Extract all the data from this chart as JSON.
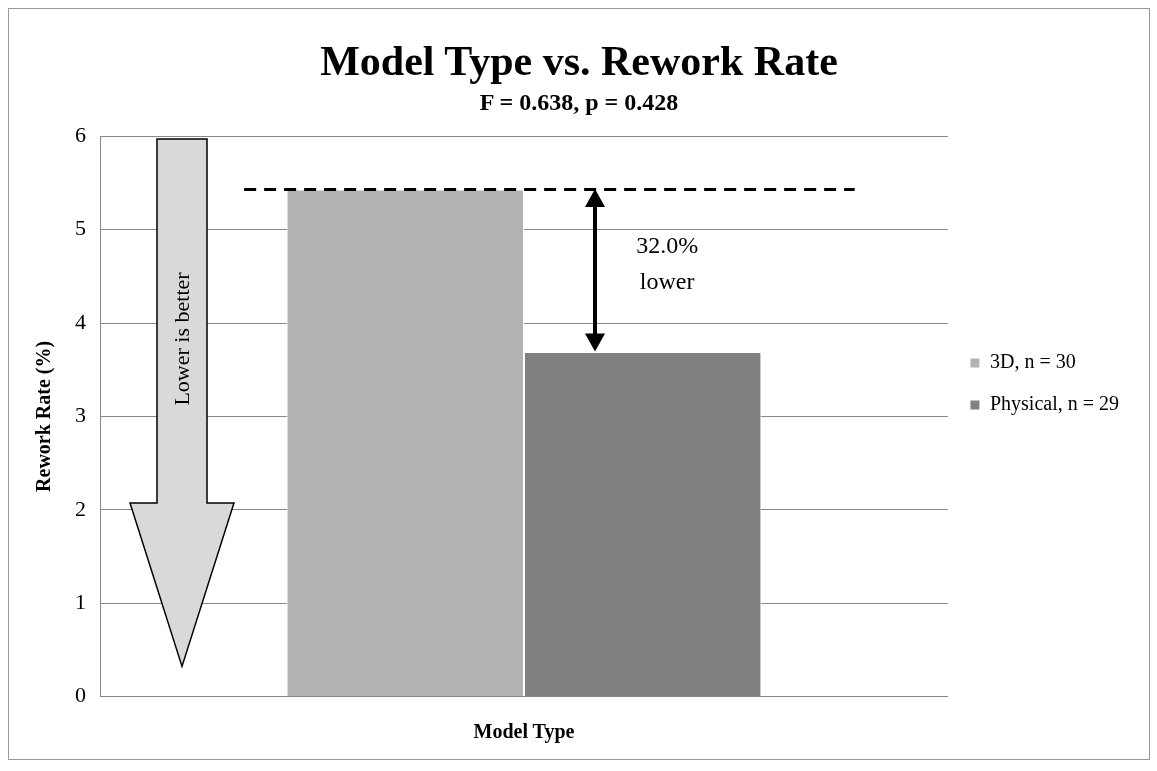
{
  "chart_data": {
    "type": "bar",
    "title": "Model Type vs. Rework Rate",
    "subtitle": "F = 0.638, p = 0.428",
    "xlabel": "Model Type",
    "ylabel": "Rework Rate (%)",
    "categories": [
      null
    ],
    "series": [
      {
        "name": "3D, n = 30",
        "color": "#b2b2b2",
        "values": [
          5.43
        ]
      },
      {
        "name": "Physical, n = 29",
        "color": "#808080",
        "values": [
          3.69
        ]
      }
    ],
    "ylim": [
      0,
      6
    ],
    "yticks": [
      0,
      1,
      2,
      3,
      4,
      5,
      6
    ],
    "grid": "y",
    "legend": "right",
    "ref_lines": [
      {
        "axis": "y",
        "value": 5.43,
        "color": "#000000",
        "line_style": "dashed"
      }
    ],
    "annotations": [
      "32.0% lower",
      "Lower is better"
    ]
  }
}
